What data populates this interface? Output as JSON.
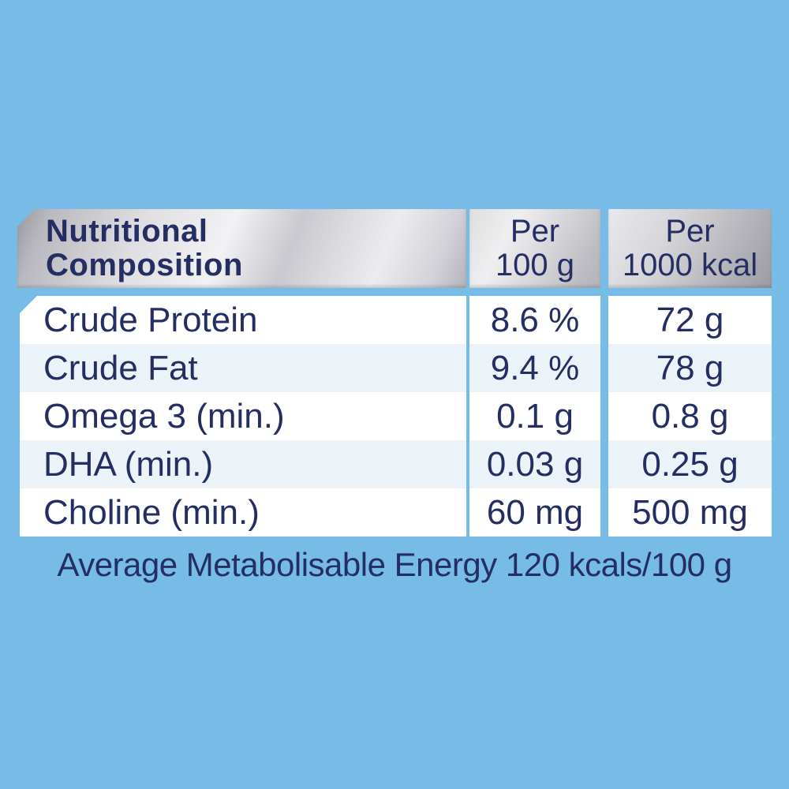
{
  "colors": {
    "background": "#76BCE6",
    "text_navy": "#242E62",
    "row_alt": "#EBF3F9",
    "row_white": "#FFFFFF",
    "header_silver_light": "#F2F2F4",
    "header_silver_dark": "#97979D"
  },
  "table": {
    "header": {
      "title_line1": "Nutritional",
      "title_line2": "Composition",
      "col_per100_line1": "Per",
      "col_per100_line2": "100 g",
      "col_per1000_line1": "Per",
      "col_per1000_line2": "1000 kcal"
    },
    "rows": [
      {
        "label": "Crude Protein",
        "per_100g": "8.6 %",
        "per_1000kcal": "72 g"
      },
      {
        "label": "Crude Fat",
        "per_100g": "9.4 %",
        "per_1000kcal": "78 g"
      },
      {
        "label": "Omega 3 (min.)",
        "per_100g": "0.1 g",
        "per_1000kcal": "0.8 g"
      },
      {
        "label": "DHA (min.)",
        "per_100g": "0.03 g",
        "per_1000kcal": "0.25 g"
      },
      {
        "label": "Choline (min.)",
        "per_100g": "60 mg",
        "per_1000kcal": "500 mg"
      }
    ],
    "footer": "Average Metabolisable Energy 120 kcals/100 g"
  }
}
